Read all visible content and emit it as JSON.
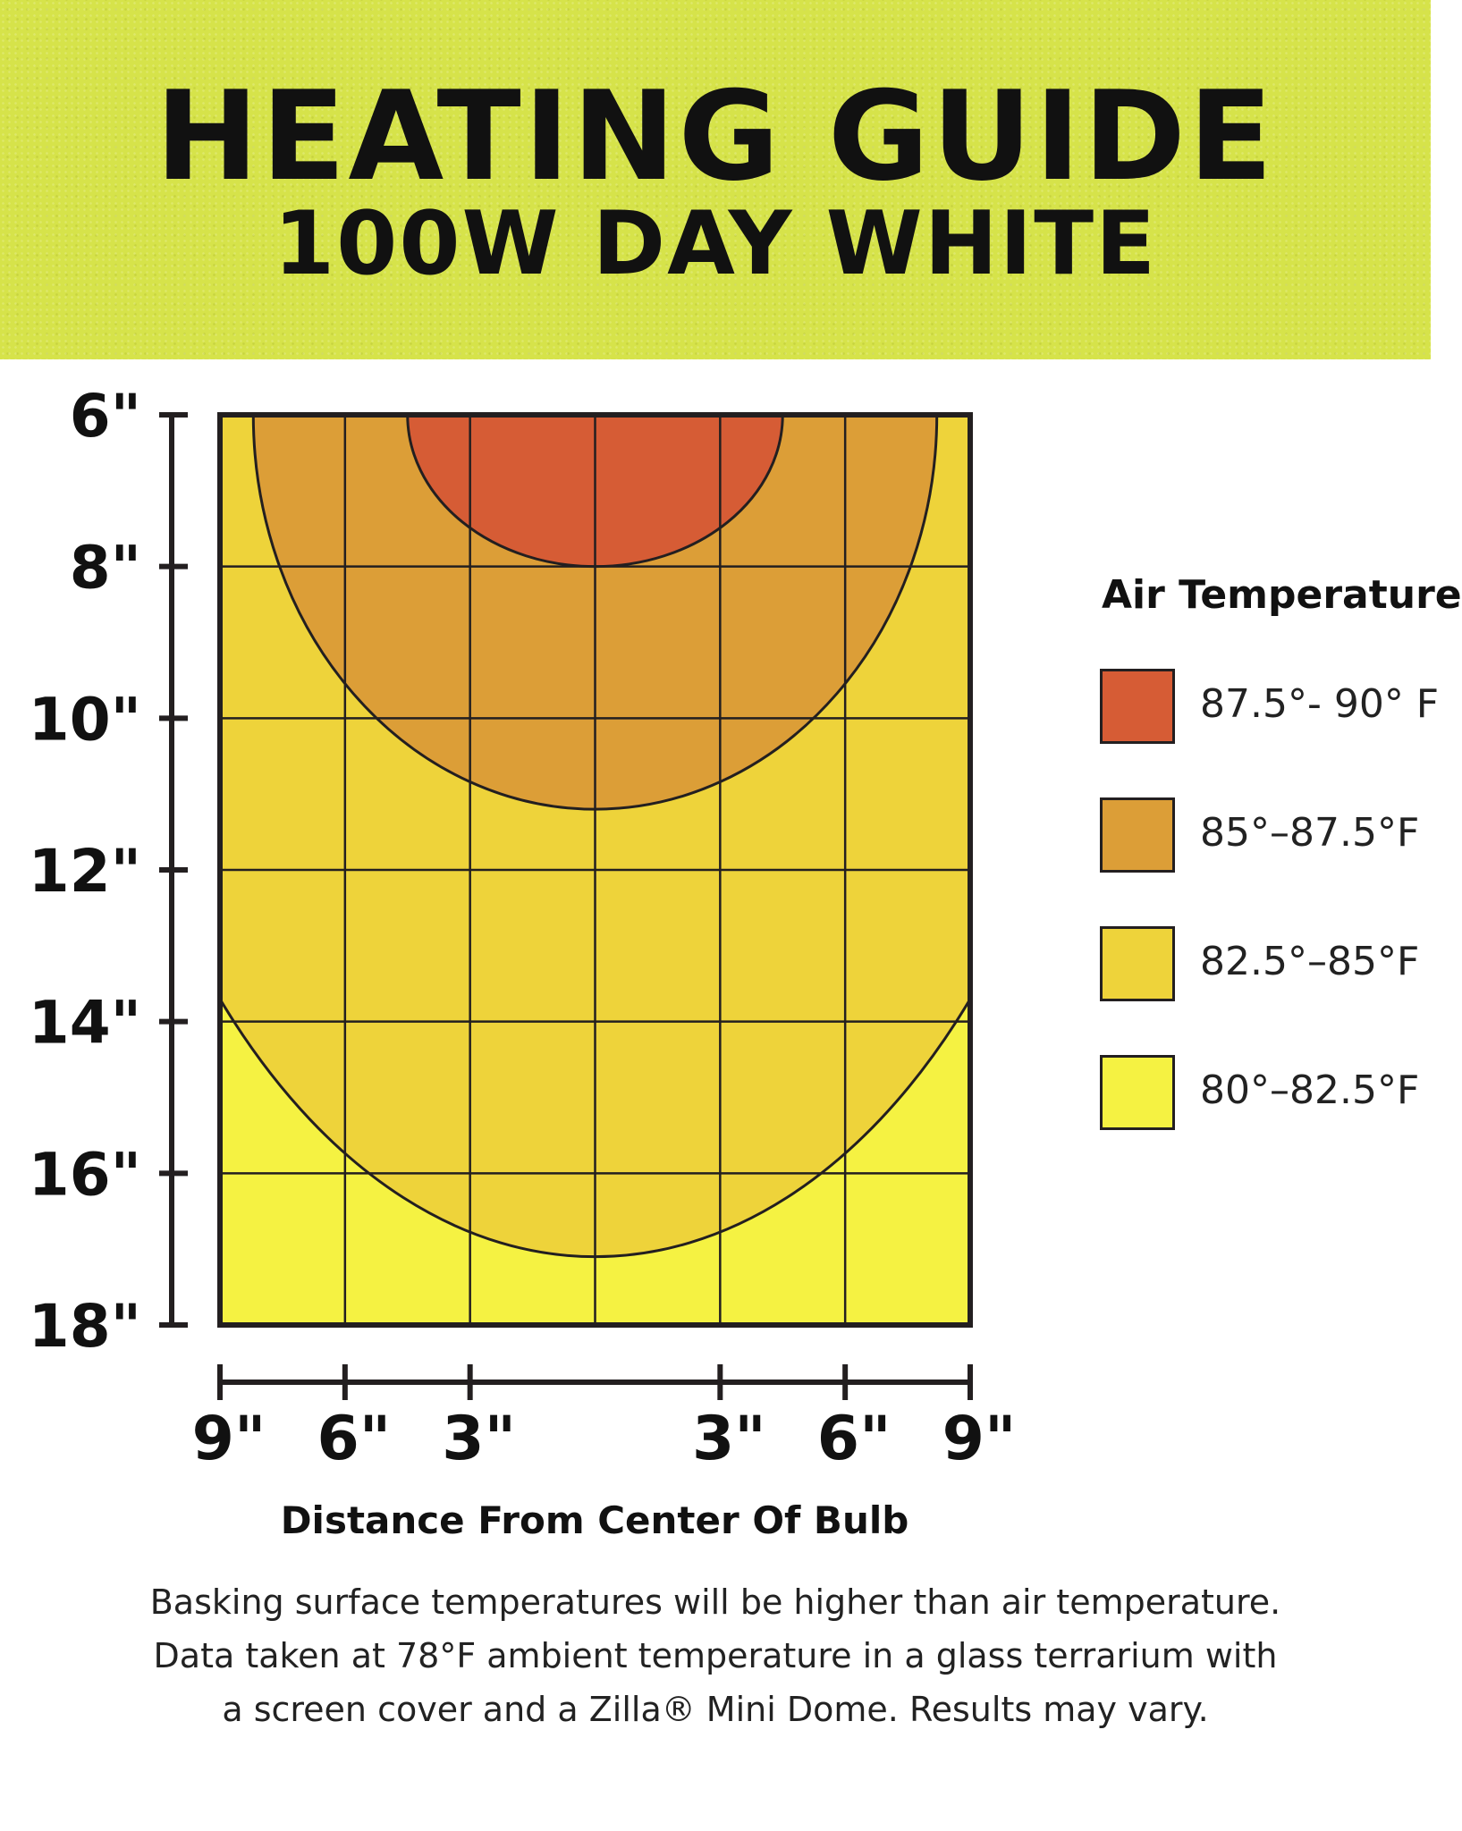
{
  "header": {
    "title": "HEATING GUIDE",
    "subtitle": "100W DAY WHITE"
  },
  "chart_data": {
    "type": "heatmap",
    "title": "HEATING GUIDE",
    "subtitle": "100W DAY WHITE",
    "xlabel": "Distance From Center Of Bulb",
    "ylabel": "",
    "x_tick_labels": [
      "9\"",
      "6\"",
      "3\"",
      "3\"",
      "6\"",
      "9\""
    ],
    "x_ticks_in": [
      -9,
      -6,
      -3,
      3,
      6,
      9
    ],
    "y_tick_labels": [
      "6\"",
      "8\"",
      "10\"",
      "12\"",
      "14\"",
      "16\"",
      "18\""
    ],
    "y_ticks_in": [
      6,
      8,
      10,
      12,
      14,
      16,
      18
    ],
    "xlim": [
      -9,
      9
    ],
    "ylim": [
      6,
      18
    ],
    "grid": true,
    "legend_title": "Air Temperature",
    "legend_position": "right",
    "zones": [
      {
        "label": "87.5°- 90° F",
        "color": "#d65c35",
        "radius_x_in": 4.5,
        "depth_in": 8.0
      },
      {
        "label": "85°–87.5°F",
        "color": "#dc9e37",
        "radius_x_in": 8.2,
        "depth_in": 11.2
      },
      {
        "label": "82.5°–85°F",
        "color": "#eed33a",
        "radius_x_in": 12.5,
        "depth_in": 17.1
      },
      {
        "label": "80°–82.5°F",
        "color": "#f5f242",
        "radius_x_in": null,
        "depth_in": null
      }
    ]
  },
  "footnote": {
    "line1": "Basking surface temperatures will be higher than air temperature.",
    "line2": "Data taken at 78°F ambient temperature in a glass terrarium with",
    "line3": "a screen cover and a Zilla® Mini Dome. Results may vary."
  }
}
